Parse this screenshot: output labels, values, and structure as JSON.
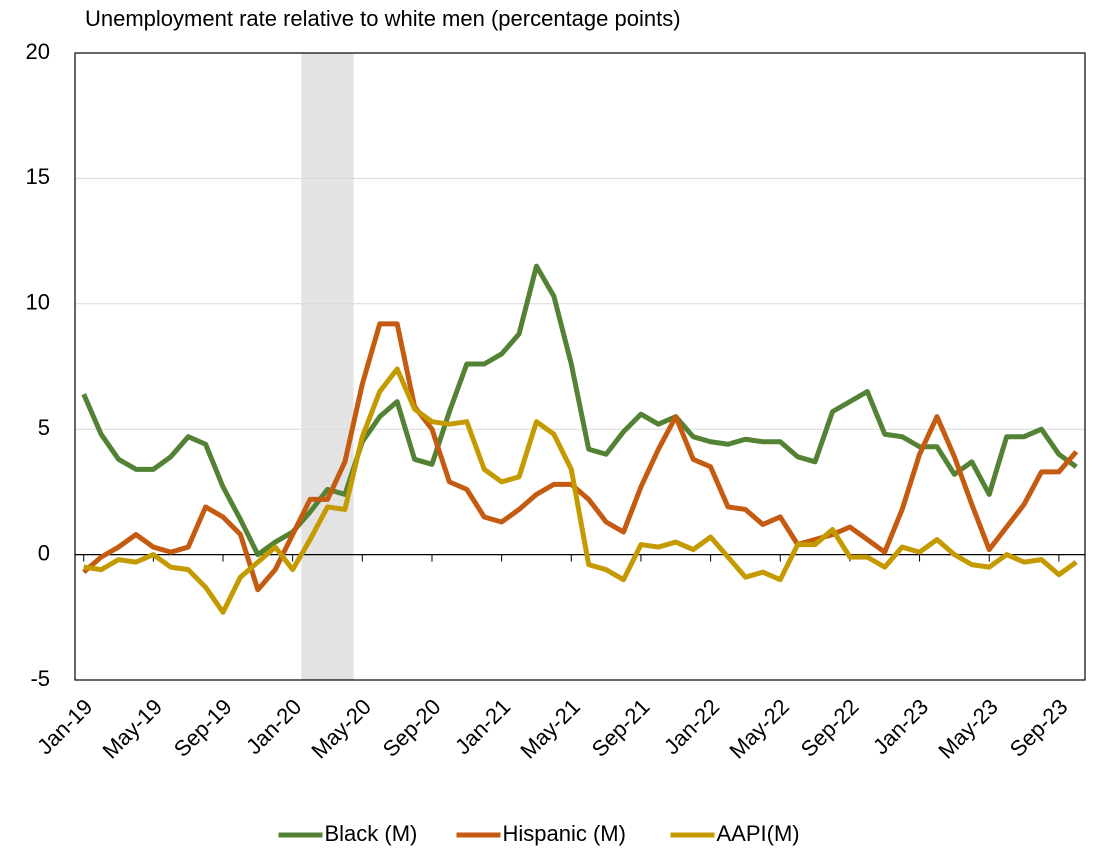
{
  "chart_data": {
    "type": "line",
    "title": "Unemployment rate relative to white men (percentage points)",
    "categories": [
      "Jan-19",
      null,
      null,
      null,
      "May-19",
      null,
      null,
      null,
      "Sep-19",
      null,
      null,
      null,
      "Jan-20",
      null,
      null,
      null,
      "May-20",
      null,
      null,
      null,
      "Sep-20",
      null,
      null,
      null,
      "Jan-21",
      null,
      null,
      null,
      "May-21",
      null,
      null,
      null,
      "Sep-21",
      null,
      null,
      null,
      "Jan-22",
      null,
      null,
      null,
      "May-22",
      null,
      null,
      null,
      "Sep-22",
      null,
      null,
      null,
      "Jan-23",
      null,
      null,
      null,
      "May-23",
      null,
      null,
      null,
      "Sep-23",
      null
    ],
    "series": [
      {
        "name": "Black (M)",
        "color": "#548235",
        "values": [
          6.4,
          4.8,
          3.8,
          3.4,
          3.4,
          3.9,
          4.7,
          4.4,
          2.7,
          1.4,
          0.0,
          0.5,
          0.9,
          1.7,
          2.6,
          2.4,
          4.5,
          5.5,
          6.1,
          3.8,
          3.6,
          5.7,
          7.6,
          7.6,
          8.0,
          8.8,
          11.5,
          10.3,
          7.6,
          4.2,
          4.0,
          4.9,
          5.6,
          5.2,
          5.5,
          4.7,
          4.5,
          4.4,
          4.6,
          4.5,
          4.5,
          3.9,
          3.7,
          5.7,
          6.1,
          6.5,
          4.8,
          4.7,
          4.3,
          4.3,
          3.2,
          3.7,
          2.4,
          4.7,
          4.7,
          5.0,
          4.0,
          3.5
        ]
      },
      {
        "name": "Hispanic (M)",
        "color": "#c55a11",
        "values": [
          -0.7,
          -0.1,
          0.3,
          0.8,
          0.3,
          0.1,
          0.3,
          1.9,
          1.5,
          0.8,
          -1.4,
          -0.6,
          0.8,
          2.2,
          2.2,
          3.7,
          6.8,
          9.2,
          9.2,
          5.9,
          5.0,
          2.9,
          2.6,
          1.5,
          1.3,
          1.8,
          2.4,
          2.8,
          2.8,
          2.2,
          1.3,
          0.9,
          2.7,
          4.2,
          5.5,
          3.8,
          3.5,
          1.9,
          1.8,
          1.2,
          1.5,
          0.4,
          0.6,
          0.8,
          1.1,
          0.6,
          0.1,
          1.8,
          4.0,
          5.5,
          3.9,
          2.0,
          0.2,
          1.1,
          2.0,
          3.3,
          3.3,
          4.1
        ]
      },
      {
        "name": "AAPI(M)",
        "color": "#c49a00",
        "values": [
          -0.5,
          -0.6,
          -0.2,
          -0.3,
          0.0,
          -0.5,
          -0.6,
          -1.3,
          -2.3,
          -0.9,
          -0.3,
          0.3,
          -0.6,
          0.6,
          1.9,
          1.8,
          4.7,
          6.5,
          7.4,
          5.8,
          5.3,
          5.2,
          5.3,
          3.4,
          2.9,
          3.1,
          5.3,
          4.8,
          3.4,
          -0.4,
          -0.6,
          -1.0,
          0.4,
          0.3,
          0.5,
          0.2,
          0.7,
          -0.1,
          -0.9,
          -0.7,
          -1.0,
          0.4,
          0.4,
          1.0,
          -0.1,
          -0.1,
          -0.5,
          0.3,
          0.1,
          0.6,
          0.0,
          -0.4,
          -0.5,
          0.0,
          -0.3,
          -0.2,
          -0.8,
          -0.3
        ]
      }
    ],
    "shaded": {
      "from": 13,
      "to": 15,
      "color": "#e3e3e3"
    },
    "ylim": [
      -5,
      20
    ],
    "yticks": [
      -5,
      0,
      5,
      10,
      15,
      20
    ],
    "grid": true,
    "legend": "bottom"
  }
}
